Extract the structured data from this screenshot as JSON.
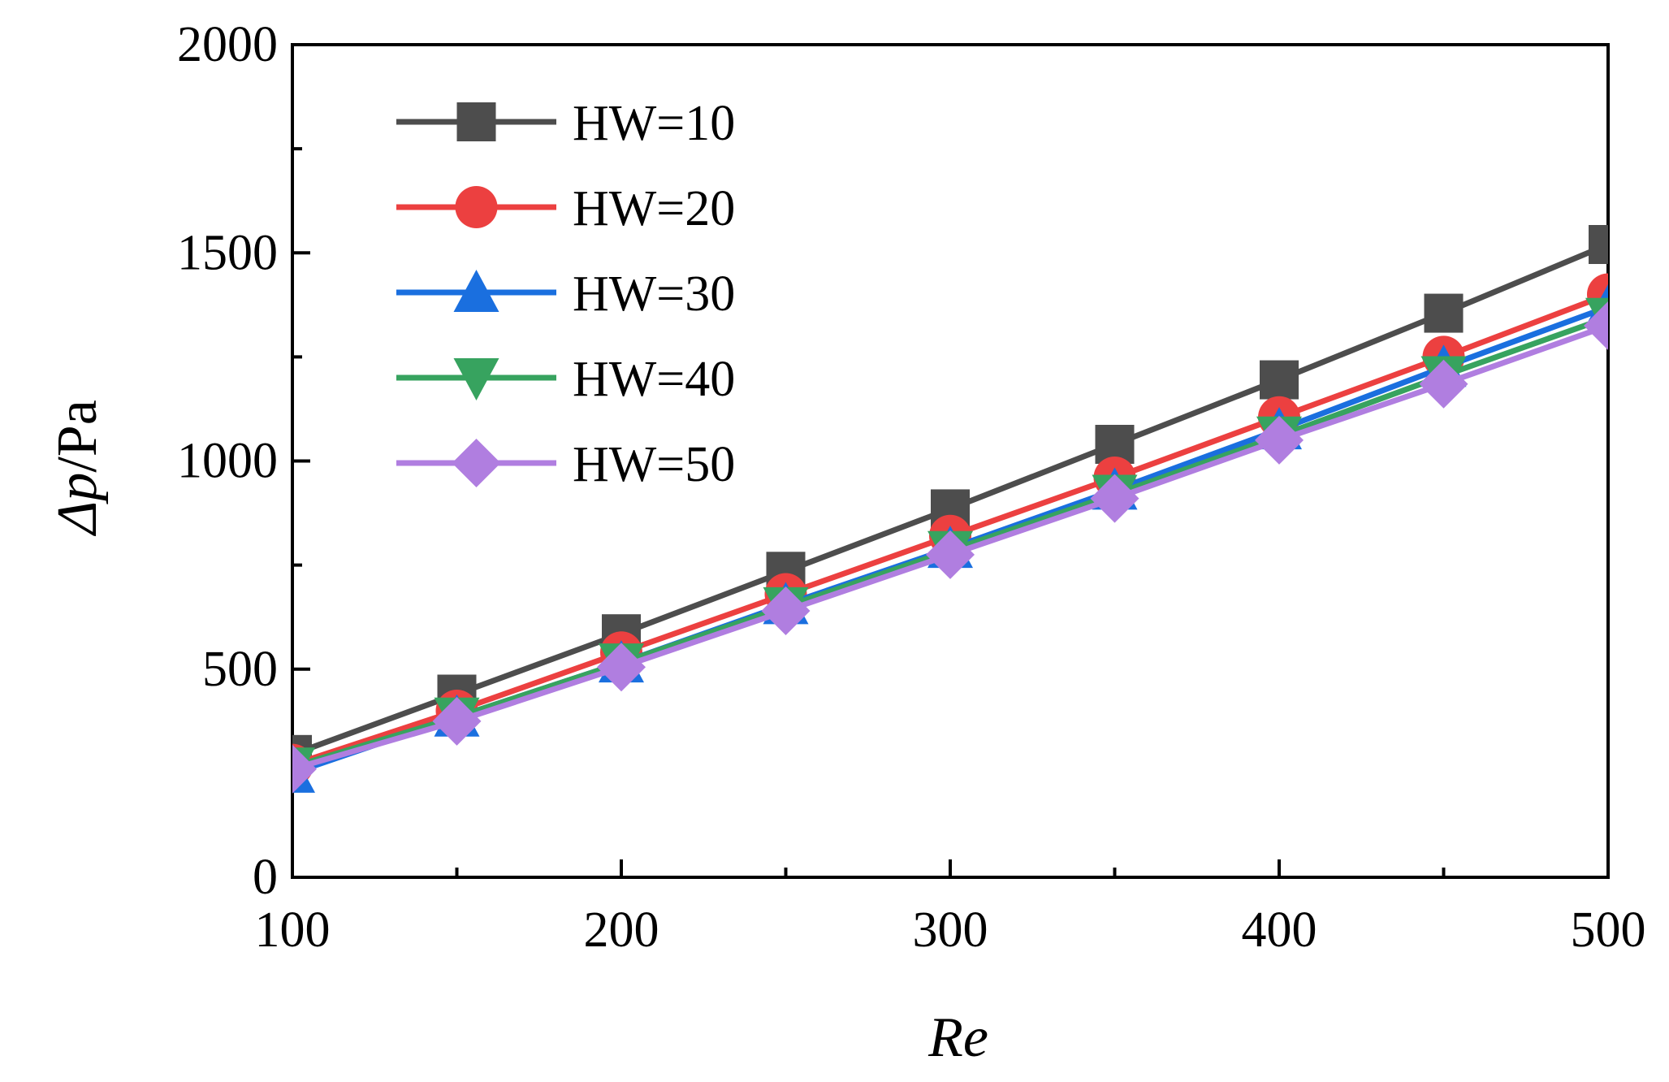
{
  "chart_data": {
    "type": "line",
    "title": "",
    "xlabel": "Re",
    "ylabel_symbol": "Δp",
    "ylabel_unit": "/Pa",
    "x": [
      100,
      150,
      200,
      250,
      300,
      350,
      400,
      450,
      500
    ],
    "xlim": [
      100,
      500
    ],
    "ylim": [
      0,
      2000
    ],
    "xticks": [
      100,
      200,
      300,
      400,
      500
    ],
    "xtick_labels": [
      "100",
      "200",
      "300",
      "400",
      "500"
    ],
    "yticks": [
      0,
      500,
      1000,
      1500,
      2000
    ],
    "ytick_labels": [
      "0",
      "500",
      "1000",
      "1500",
      "2000"
    ],
    "ytick_minor": [
      250,
      750,
      1250,
      1750
    ],
    "xtick_minor": [
      150,
      250,
      350,
      450
    ],
    "grid": false,
    "legend_position": "top-left",
    "series": [
      {
        "name": "HW=10",
        "label": "HW=10",
        "color": "#4d4d4d",
        "marker": "square",
        "values": [
          295,
          440,
          585,
          735,
          885,
          1040,
          1195,
          1355,
          1520
        ]
      },
      {
        "name": "HW=20",
        "label": "HW=20",
        "color": "#ec4040",
        "marker": "circle",
        "values": [
          270,
          400,
          540,
          680,
          820,
          960,
          1105,
          1250,
          1400
        ]
      },
      {
        "name": "HW=30",
        "label": "HW=30",
        "color": "#1a6fdf",
        "marker": "triangle-up",
        "values": [
          250,
          385,
          515,
          655,
          790,
          930,
          1075,
          1225,
          1370
        ]
      },
      {
        "name": "HW=40",
        "label": "HW=40",
        "color": "#37a35f",
        "marker": "triangle-down",
        "values": [
          265,
          385,
          515,
          650,
          785,
          920,
          1060,
          1205,
          1345
        ]
      },
      {
        "name": "HW=50",
        "label": "HW=50",
        "color": "#b07ee0",
        "marker": "diamond",
        "values": [
          260,
          375,
          505,
          640,
          775,
          910,
          1050,
          1185,
          1325
        ]
      }
    ]
  }
}
